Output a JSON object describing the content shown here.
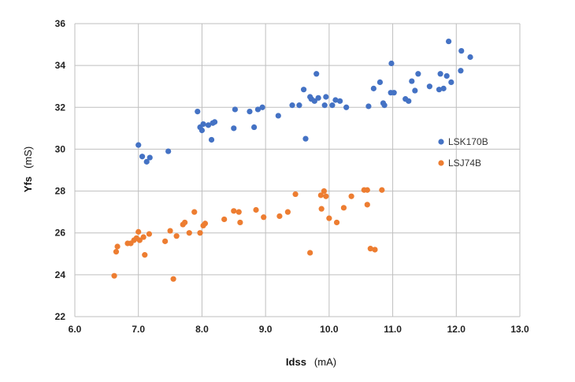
{
  "chart_data": {
    "type": "scatter",
    "title": "",
    "xlabel": {
      "main": "Idss",
      "unit": "(mA)"
    },
    "ylabel": {
      "main": "Yfs",
      "unit": "(mS)"
    },
    "xlim": [
      6.0,
      13.0
    ],
    "ylim": [
      22,
      36
    ],
    "xticks": [
      "6.0",
      "7.0",
      "8.0",
      "9.0",
      "10.0",
      "11.0",
      "12.0",
      "13.0"
    ],
    "yticks": [
      "22",
      "24",
      "26",
      "28",
      "30",
      "32",
      "34",
      "36"
    ],
    "grid": true,
    "legend_position": "right",
    "series": [
      {
        "name": "LSK170B",
        "color": "#4472C4",
        "points": [
          [
            7.0,
            30.2
          ],
          [
            7.06,
            29.65
          ],
          [
            7.13,
            29.4
          ],
          [
            7.18,
            29.6
          ],
          [
            7.47,
            29.9
          ],
          [
            7.93,
            31.8
          ],
          [
            7.97,
            31.05
          ],
          [
            8.0,
            30.9
          ],
          [
            8.02,
            31.2
          ],
          [
            8.1,
            31.15
          ],
          [
            8.15,
            30.45
          ],
          [
            8.2,
            31.3
          ],
          [
            8.17,
            31.25
          ],
          [
            8.5,
            31.0
          ],
          [
            8.52,
            31.9
          ],
          [
            8.75,
            31.8
          ],
          [
            8.82,
            31.05
          ],
          [
            8.88,
            31.9
          ],
          [
            8.95,
            32.0
          ],
          [
            9.2,
            31.6
          ],
          [
            9.42,
            32.1
          ],
          [
            9.53,
            32.1
          ],
          [
            9.6,
            32.85
          ],
          [
            9.63,
            30.5
          ],
          [
            9.7,
            32.5
          ],
          [
            9.72,
            32.4
          ],
          [
            9.77,
            32.3
          ],
          [
            9.8,
            33.6
          ],
          [
            9.83,
            32.45
          ],
          [
            9.93,
            32.1
          ],
          [
            9.95,
            32.5
          ],
          [
            10.05,
            32.1
          ],
          [
            10.1,
            32.35
          ],
          [
            10.17,
            32.3
          ],
          [
            10.27,
            32.0
          ],
          [
            10.62,
            32.05
          ],
          [
            10.7,
            32.9
          ],
          [
            10.8,
            33.2
          ],
          [
            10.85,
            32.2
          ],
          [
            10.87,
            32.1
          ],
          [
            10.97,
            32.7
          ],
          [
            10.98,
            34.1
          ],
          [
            11.02,
            32.7
          ],
          [
            11.2,
            32.4
          ],
          [
            11.25,
            32.3
          ],
          [
            11.3,
            33.25
          ],
          [
            11.35,
            32.8
          ],
          [
            11.4,
            33.6
          ],
          [
            11.58,
            33.0
          ],
          [
            11.73,
            32.85
          ],
          [
            11.75,
            33.6
          ],
          [
            11.8,
            32.9
          ],
          [
            11.85,
            33.5
          ],
          [
            11.88,
            35.15
          ],
          [
            11.92,
            33.2
          ],
          [
            12.07,
            33.75
          ],
          [
            12.08,
            34.7
          ],
          [
            12.22,
            34.4
          ]
        ]
      },
      {
        "name": "LSJ74B",
        "color": "#ED7D31",
        "points": [
          [
            6.62,
            23.95
          ],
          [
            6.65,
            25.1
          ],
          [
            6.67,
            25.35
          ],
          [
            6.83,
            25.5
          ],
          [
            6.88,
            25.5
          ],
          [
            6.93,
            25.65
          ],
          [
            6.97,
            25.75
          ],
          [
            7.0,
            26.05
          ],
          [
            7.02,
            25.65
          ],
          [
            7.08,
            25.8
          ],
          [
            7.1,
            24.95
          ],
          [
            7.17,
            25.95
          ],
          [
            7.42,
            25.6
          ],
          [
            7.5,
            26.1
          ],
          [
            7.55,
            23.8
          ],
          [
            7.6,
            25.85
          ],
          [
            7.7,
            26.4
          ],
          [
            7.73,
            26.5
          ],
          [
            7.8,
            26.0
          ],
          [
            7.88,
            27.0
          ],
          [
            7.97,
            26.0
          ],
          [
            8.02,
            26.35
          ],
          [
            8.05,
            26.45
          ],
          [
            8.35,
            26.65
          ],
          [
            8.5,
            27.05
          ],
          [
            8.58,
            27.0
          ],
          [
            8.6,
            26.5
          ],
          [
            8.85,
            27.1
          ],
          [
            8.97,
            26.75
          ],
          [
            9.22,
            26.8
          ],
          [
            9.35,
            27.0
          ],
          [
            9.47,
            27.85
          ],
          [
            9.7,
            25.05
          ],
          [
            9.87,
            27.8
          ],
          [
            9.88,
            27.15
          ],
          [
            9.92,
            28.0
          ],
          [
            9.95,
            27.75
          ],
          [
            10.0,
            26.7
          ],
          [
            10.12,
            26.5
          ],
          [
            10.23,
            27.2
          ],
          [
            10.35,
            27.75
          ],
          [
            10.55,
            28.05
          ],
          [
            10.6,
            28.05
          ],
          [
            10.6,
            27.35
          ],
          [
            10.65,
            25.25
          ],
          [
            10.72,
            25.2
          ],
          [
            10.83,
            28.05
          ]
        ]
      }
    ]
  }
}
